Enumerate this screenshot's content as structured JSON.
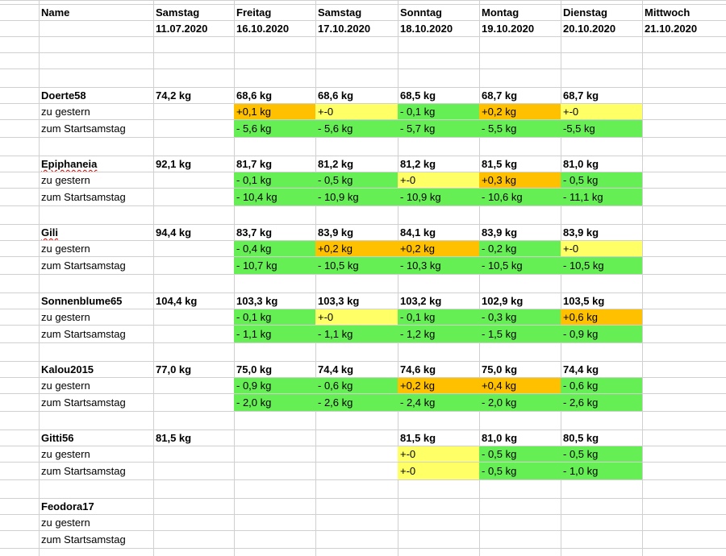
{
  "header": {
    "name_label": "Name",
    "columns": [
      {
        "day": "Samstag",
        "date": "11.07.2020"
      },
      {
        "day": "Freitag",
        "date": "16.10.2020"
      },
      {
        "day": "Samstag",
        "date": "17.10.2020"
      },
      {
        "day": "Sonntag",
        "date": "18.10.2020"
      },
      {
        "day": "Montag",
        "date": "19.10.2020"
      },
      {
        "day": "Dienstag",
        "date": "20.10.2020"
      },
      {
        "day": "Mittwoch",
        "date": "21.10.2020"
      }
    ]
  },
  "row_labels": {
    "yesterday": "zu gestern",
    "start": "zum Startsamstag"
  },
  "status_colors": {
    "loss": "#66ee55",
    "unchanged": "#ffff66",
    "gain": "#ffc000"
  },
  "persons": [
    {
      "name": "Doerte58",
      "spell_marked": false,
      "weights": [
        "74,2 kg",
        "68,6 kg",
        "68,6 kg",
        "68,5 kg",
        "68,7 kg",
        "68,7 kg",
        ""
      ],
      "yesterday": [
        {
          "v": ""
        },
        {
          "v": "+0,1 kg",
          "c": "orange"
        },
        {
          "v": "+-0",
          "c": "yellow"
        },
        {
          "v": "- 0,1 kg",
          "c": "green"
        },
        {
          "v": "+0,2 kg",
          "c": "orange"
        },
        {
          "v": "+-0",
          "c": "yellow"
        },
        {
          "v": ""
        }
      ],
      "start": [
        {
          "v": ""
        },
        {
          "v": "- 5,6 kg",
          "c": "green"
        },
        {
          "v": "- 5,6 kg",
          "c": "green"
        },
        {
          "v": "- 5,7 kg",
          "c": "green"
        },
        {
          "v": "- 5,5 kg",
          "c": "green"
        },
        {
          "v": "-5,5 kg",
          "c": "green"
        },
        {
          "v": ""
        }
      ]
    },
    {
      "name": "Epiphaneia",
      "spell_marked": true,
      "weights": [
        "92,1 kg",
        "81,7 kg",
        "81,2 kg",
        "81,2 kg",
        "81,5 kg",
        "81,0 kg",
        ""
      ],
      "yesterday": [
        {
          "v": ""
        },
        {
          "v": "-  0,1 kg",
          "c": "green"
        },
        {
          "v": "-  0,5 kg",
          "c": "green"
        },
        {
          "v": "+-0",
          "c": "yellow"
        },
        {
          "v": "+0,3 kg",
          "c": "orange"
        },
        {
          "v": "- 0,5 kg",
          "c": "green"
        },
        {
          "v": ""
        }
      ],
      "start": [
        {
          "v": ""
        },
        {
          "v": "- 10,4 kg",
          "c": "green"
        },
        {
          "v": "- 10,9 kg",
          "c": "green"
        },
        {
          "v": "- 10,9 kg",
          "c": "green"
        },
        {
          "v": "- 10,6 kg",
          "c": "green"
        },
        {
          "v": "- 11,1 kg",
          "c": "green"
        },
        {
          "v": ""
        }
      ]
    },
    {
      "name": "Gili",
      "spell_marked": true,
      "weights": [
        "94,4 kg",
        "83,7 kg",
        "83,9 kg",
        "84,1 kg",
        "83,9 kg",
        "83,9 kg",
        ""
      ],
      "yesterday": [
        {
          "v": ""
        },
        {
          "v": "-  0,4 kg",
          "c": "green"
        },
        {
          "v": "+0,2 kg",
          "c": "orange"
        },
        {
          "v": "+0,2 kg",
          "c": "orange"
        },
        {
          "v": "- 0,2 kg",
          "c": "green"
        },
        {
          "v": "+-0",
          "c": "yellow"
        },
        {
          "v": ""
        }
      ],
      "start": [
        {
          "v": ""
        },
        {
          "v": "-  10,7 kg",
          "c": "green"
        },
        {
          "v": "- 10,5 kg",
          "c": "green"
        },
        {
          "v": "- 10,3 kg",
          "c": "green"
        },
        {
          "v": "- 10,5 kg",
          "c": "green"
        },
        {
          "v": "- 10,5 kg",
          "c": "green"
        },
        {
          "v": ""
        }
      ]
    },
    {
      "name": "Sonnenblume65",
      "spell_marked": false,
      "weights": [
        "104,4 kg",
        "103,3 kg",
        "103,3 kg",
        "103,2 kg",
        "102,9 kg",
        "103,5 kg",
        ""
      ],
      "yesterday": [
        {
          "v": ""
        },
        {
          "v": "- 0,1 kg",
          "c": "green"
        },
        {
          "v": "+-0",
          "c": "yellow"
        },
        {
          "v": "- 0,1 kg",
          "c": "green"
        },
        {
          "v": "- 0,3 kg",
          "c": "green"
        },
        {
          "v": "+0,6 kg",
          "c": "orange"
        },
        {
          "v": ""
        }
      ],
      "start": [
        {
          "v": ""
        },
        {
          "v": "- 1,1 kg",
          "c": "green"
        },
        {
          "v": "- 1,1 kg",
          "c": "green"
        },
        {
          "v": "- 1,2 kg",
          "c": "green"
        },
        {
          "v": "- 1,5 kg",
          "c": "green"
        },
        {
          "v": "- 0,9 kg",
          "c": "green"
        },
        {
          "v": ""
        }
      ]
    },
    {
      "name": "Kalou2015",
      "spell_marked": false,
      "weights": [
        "77,0 kg",
        "75,0 kg",
        "74,4 kg",
        "74,6 kg",
        "75,0 kg",
        "74,4 kg",
        ""
      ],
      "yesterday": [
        {
          "v": ""
        },
        {
          "v": "- 0,9 kg",
          "c": "green"
        },
        {
          "v": "- 0,6 kg",
          "c": "green"
        },
        {
          "v": "+0,2 kg",
          "c": "orange"
        },
        {
          "v": "+0,4 kg",
          "c": "orange"
        },
        {
          "v": "- 0,6 kg",
          "c": "green"
        },
        {
          "v": ""
        }
      ],
      "start": [
        {
          "v": ""
        },
        {
          "v": "- 2,0 kg",
          "c": "green"
        },
        {
          "v": "- 2,6 kg",
          "c": "green"
        },
        {
          "v": "- 2,4 kg",
          "c": "green"
        },
        {
          "v": "- 2,0 kg",
          "c": "green"
        },
        {
          "v": "- 2,6 kg",
          "c": "green"
        },
        {
          "v": ""
        }
      ]
    },
    {
      "name": "Gitti56",
      "spell_marked": false,
      "weights": [
        "81,5 kg",
        "",
        "",
        "81,5 kg",
        "81,0 kg",
        "80,5 kg",
        ""
      ],
      "yesterday": [
        {
          "v": ""
        },
        {
          "v": ""
        },
        {
          "v": ""
        },
        {
          "v": "+-0",
          "c": "yellow"
        },
        {
          "v": "- 0,5 kg",
          "c": "green"
        },
        {
          "v": "- 0,5 kg",
          "c": "green"
        },
        {
          "v": ""
        }
      ],
      "start": [
        {
          "v": ""
        },
        {
          "v": ""
        },
        {
          "v": ""
        },
        {
          "v": "+-0",
          "c": "yellow"
        },
        {
          "v": "- 0,5 kg",
          "c": "green"
        },
        {
          "v": "- 1,0 kg",
          "c": "green"
        },
        {
          "v": ""
        }
      ]
    },
    {
      "name": "Feodora17",
      "spell_marked": false,
      "weights": [
        "",
        "",
        "",
        "",
        "",
        "",
        ""
      ],
      "yesterday": [
        {
          "v": ""
        },
        {
          "v": ""
        },
        {
          "v": ""
        },
        {
          "v": ""
        },
        {
          "v": ""
        },
        {
          "v": ""
        },
        {
          "v": ""
        }
      ],
      "start": [
        {
          "v": ""
        },
        {
          "v": ""
        },
        {
          "v": ""
        },
        {
          "v": ""
        },
        {
          "v": ""
        },
        {
          "v": ""
        },
        {
          "v": ""
        }
      ]
    }
  ]
}
